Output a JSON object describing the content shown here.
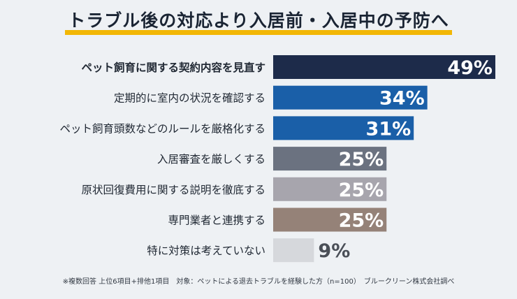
{
  "title": "トラブル後の対応より入居前・入居中の予防へ",
  "accent_color": "#f2b705",
  "chart_data": {
    "type": "bar",
    "orientation": "horizontal",
    "unit": "%",
    "categories": [
      "ペット飼育に関する契約内容を見直す",
      "定期的に室内の状況を確認する",
      "ペット飼育頭数などのルールを厳格化する",
      "入居審査を厳しくする",
      "原状回復費用に関する説明を徹底する",
      "専門業者と連携する",
      "特に対策は考えていない"
    ],
    "values": [
      49,
      34,
      31,
      25,
      25,
      25,
      9
    ],
    "value_labels": [
      "49%",
      "34%",
      "31%",
      "25%",
      "25%",
      "25%",
      "9%"
    ],
    "bar_colors": [
      "#1d2b4a",
      "#1a5fa8",
      "#1a5fa8",
      "#6b7280",
      "#a7a5ad",
      "#958278",
      "#d6d8dc"
    ],
    "highlight_index": 0,
    "xlim": [
      0,
      49
    ],
    "grid": false,
    "title": "トラブル後の対応より入居前・入居中の予防へ"
  },
  "footnote": "※複数回答 上位6項目+排他1項目　対象：ペットによる退去トラブルを経験した方（n=100）　ブルークリーン株式会社調べ"
}
